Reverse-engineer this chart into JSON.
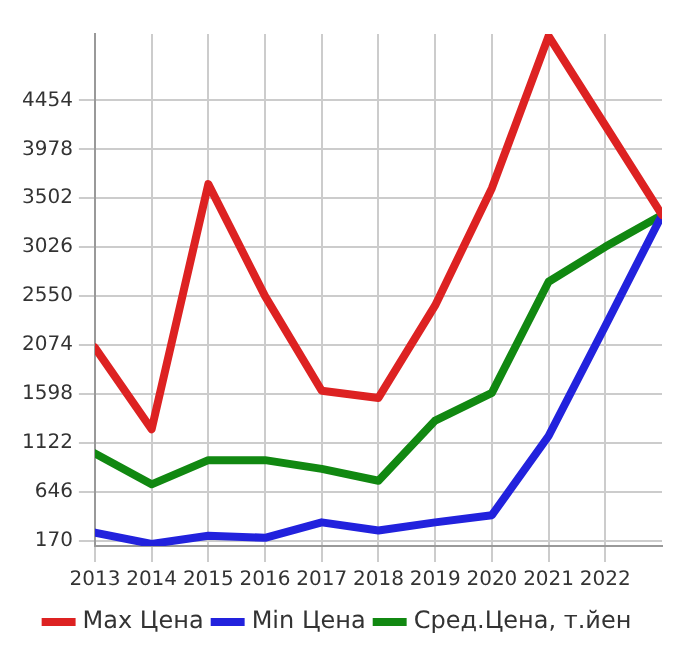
{
  "chart_data": {
    "type": "line",
    "x": [
      2013,
      2014,
      2015,
      2016,
      2017,
      2018,
      2019,
      2020,
      2021,
      2022,
      2023
    ],
    "series": [
      {
        "name": "Max Цена",
        "color": "#dd2222",
        "values": [
          2050,
          1255,
          3640,
          2550,
          1630,
          1560,
          2460,
          3600,
          5080,
          4210,
          3340
        ]
      },
      {
        "name": "Min Цена",
        "color": "#2222dd",
        "values": [
          250,
          140,
          220,
          200,
          350,
          270,
          350,
          420,
          1190,
          2260,
          3340
        ]
      },
      {
        "name": "Сред.Цена, т.йен",
        "color": "#118811",
        "values": [
          1020,
          720,
          955,
          955,
          870,
          755,
          1340,
          1610,
          2690,
          3030,
          3340
        ]
      }
    ],
    "xlim": [
      2013,
      2023
    ],
    "xticks": [
      2013,
      2014,
      2015,
      2016,
      2017,
      2018,
      2019,
      2020,
      2021,
      2022
    ],
    "ylim": [
      120,
      5100
    ],
    "yticks": [
      170,
      646,
      1122,
      1598,
      2074,
      2550,
      3026,
      3502,
      3978,
      4454
    ],
    "grid": true,
    "legend": "bottom",
    "marker": "none",
    "line_style": "solid"
  }
}
